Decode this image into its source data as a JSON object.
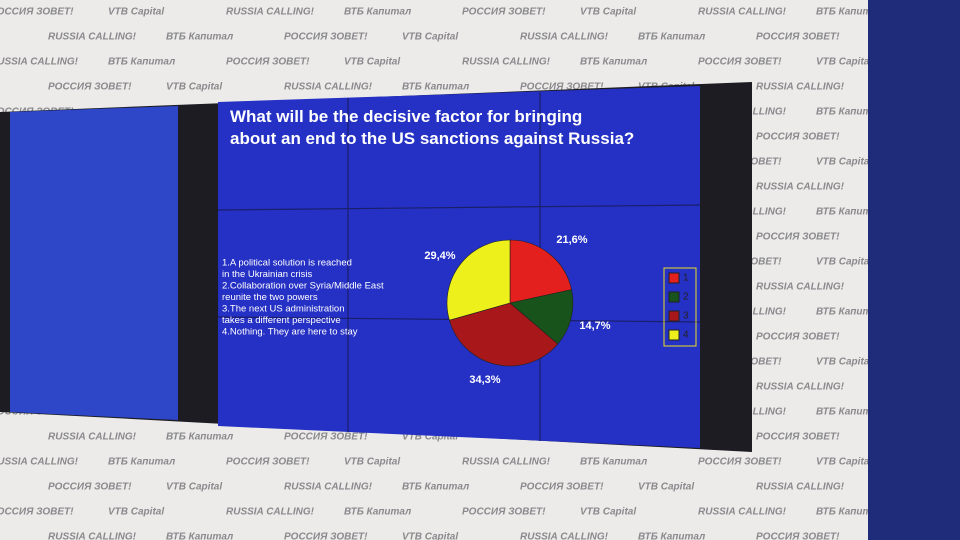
{
  "chart_data": {
    "type": "pie",
    "title": "What will be the decisive factor for bringing about an end to the US sanctions against Russia?",
    "categories": [
      "1",
      "2",
      "3",
      "4"
    ],
    "values": [
      21.6,
      14.7,
      34.3,
      29.4
    ],
    "value_labels": [
      "21,6%",
      "14,7%",
      "34,3%",
      "29,4%"
    ],
    "colors": [
      "#e3201d",
      "#17531a",
      "#a8181b",
      "#eef01c"
    ],
    "annotations": [
      "1.A political solution is reached",
      "in the Ukrainian crisis",
      "2.Collaboration over Syria/Middle East",
      "reunite the two powers",
      "3.The next US administration",
      "takes a different perspective",
      "4.Nothing. They are here to stay"
    ],
    "legend": "right"
  },
  "backdrop": {
    "logos": [
      "РОССИЯ ЗОВЕТ!",
      "VTB Capital",
      "RUSSIA CALLING!",
      "ВТБ Капитал"
    ]
  }
}
